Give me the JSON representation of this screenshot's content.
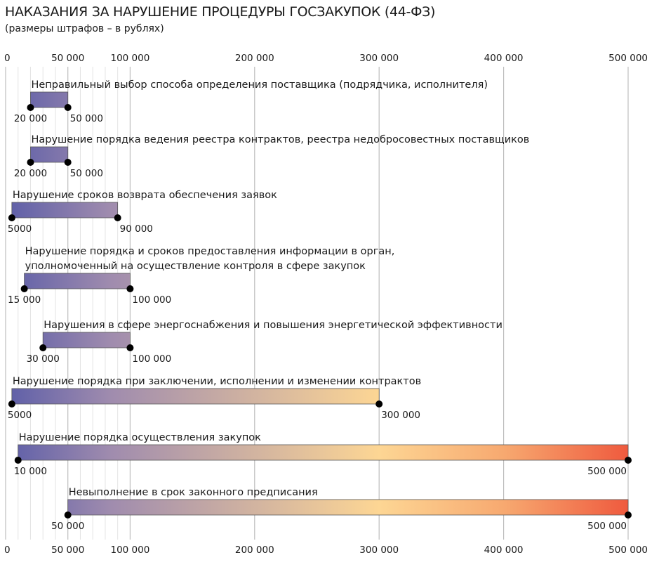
{
  "title": "НАКАЗАНИЯ ЗА НАРУШЕНИЕ ПРОЦЕДУРЫ ГОСЗАКУПОК (44-ФЗ)",
  "subtitle": "(размеры штрафов – в рублях)",
  "colors": {
    "gradient": [
      "#5d5ea8",
      "#a08cae",
      "#fdd694",
      "#f7a970",
      "#ef5a3e"
    ],
    "gridline": "#bdbdbd",
    "minor_gridline": "#e3e3e3",
    "marker": "#000000",
    "bar_outline": "#555555"
  },
  "chart_data": {
    "type": "range-bar",
    "xlim": [
      0,
      500000
    ],
    "x_ticks": [
      0,
      50000,
      100000,
      200000,
      300000,
      400000,
      500000
    ],
    "x_tick_labels": [
      "0",
      "50 000",
      "100 000",
      "200 000",
      "300 000",
      "400 000",
      "500 000"
    ],
    "minor_gridlines": [
      10000,
      20000,
      30000,
      40000,
      60000,
      70000,
      80000,
      90000
    ],
    "grid": true,
    "series": [
      {
        "label_lines": [
          "Неправильный выбор способа определения поставщика (подрядчика, исполнителя)"
        ],
        "min": 20000,
        "max": 50000,
        "min_label": "20 000",
        "max_label": "50 000"
      },
      {
        "label_lines": [
          "Нарушение порядка ведения реестра контрактов, реестра недобросовестных поставщиков"
        ],
        "min": 20000,
        "max": 50000,
        "min_label": "20 000",
        "max_label": "50 000"
      },
      {
        "label_lines": [
          "Нарушение сроков возврата обеспечения заявок"
        ],
        "min": 5000,
        "max": 90000,
        "min_label": "5000",
        "max_label": "90 000"
      },
      {
        "label_lines": [
          "Нарушение порядка и сроков предоставления информации в орган,",
          "уполномоченный на осуществление контроля в сфере закупок"
        ],
        "min": 15000,
        "max": 100000,
        "min_label": "15 000",
        "max_label": "100 000"
      },
      {
        "label_lines": [
          "Нарушения в сфере энергоснабжения и повышения энергетической эффективности"
        ],
        "min": 30000,
        "max": 100000,
        "min_label": "30 000",
        "max_label": "100 000"
      },
      {
        "label_lines": [
          "Нарушение порядка при заключении, исполнении и изменении контрактов"
        ],
        "min": 5000,
        "max": 300000,
        "min_label": "5000",
        "max_label": "300 000"
      },
      {
        "label_lines": [
          "Нарушение порядка осуществления закупок"
        ],
        "min": 10000,
        "max": 500000,
        "min_label": "10 000",
        "max_label": "500 000"
      },
      {
        "label_lines": [
          "Невыполнение в срок законного предписания"
        ],
        "min": 50000,
        "max": 500000,
        "min_label": "50 000",
        "max_label": "500 000"
      }
    ]
  }
}
